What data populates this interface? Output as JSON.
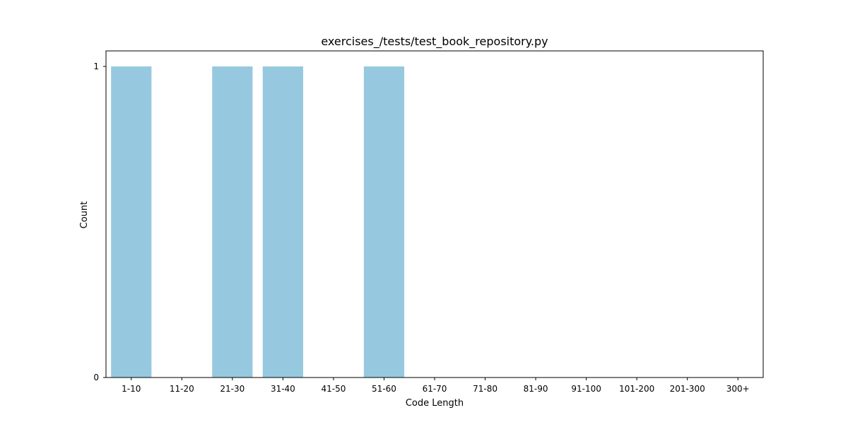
{
  "chart_data": {
    "type": "bar",
    "title": "exercises_/tests/test_book_repository.py",
    "xlabel": "Code Length",
    "ylabel": "Count",
    "categories": [
      "1-10",
      "11-20",
      "21-30",
      "31-40",
      "41-50",
      "51-60",
      "61-70",
      "71-80",
      "81-90",
      "91-100",
      "101-200",
      "201-300",
      "300+"
    ],
    "values": [
      1,
      0,
      1,
      1,
      0,
      1,
      0,
      0,
      0,
      0,
      0,
      0,
      0
    ],
    "yticks": [
      "0",
      "1"
    ],
    "ylim": [
      0,
      1.05
    ],
    "grid": false,
    "legend": "none",
    "bar_color": "#96c9df"
  }
}
